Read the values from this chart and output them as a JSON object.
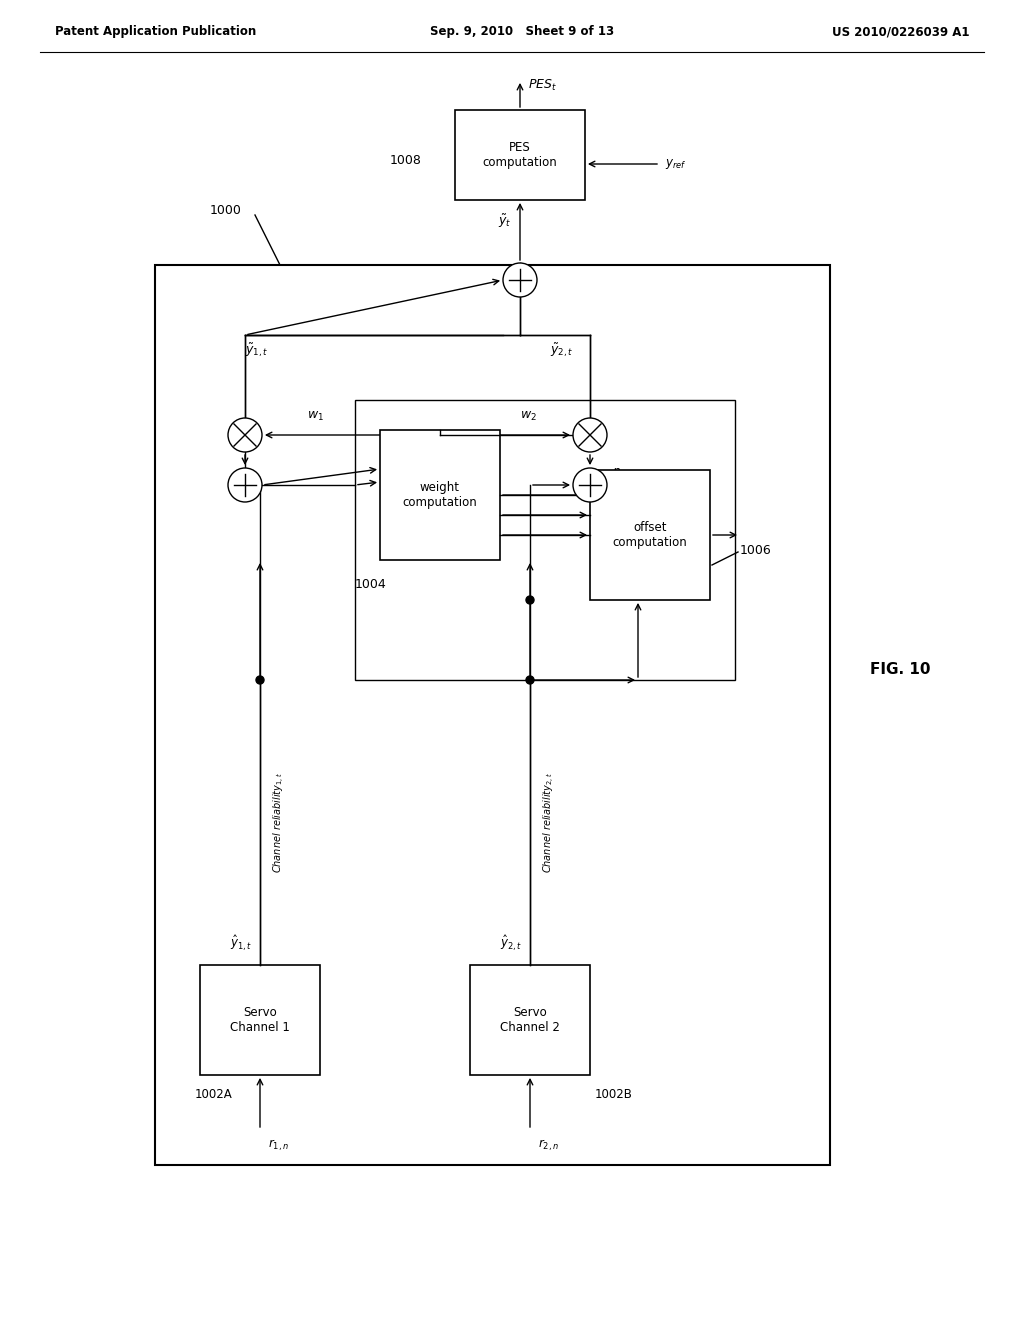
{
  "bg_color": "#ffffff",
  "header_left": "Patent Application Publication",
  "header_mid": "Sep. 9, 2010   Sheet 9 of 13",
  "header_right": "US 2010/0226039 A1",
  "fig_label": "FIG. 10"
}
